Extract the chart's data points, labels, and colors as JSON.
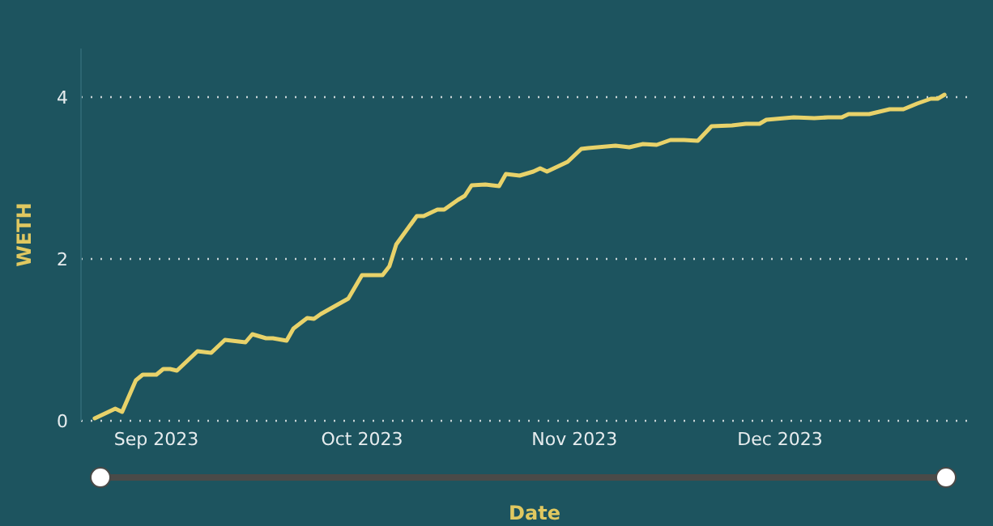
{
  "chart_data": {
    "type": "line",
    "xlabel": "Date",
    "ylabel": "WETH",
    "x": [
      "2023-08-23",
      "2023-08-26",
      "2023-08-27",
      "2023-08-29",
      "2023-08-30",
      "2023-09-01",
      "2023-09-02",
      "2023-09-03",
      "2023-09-04",
      "2023-09-07",
      "2023-09-09",
      "2023-09-11",
      "2023-09-14",
      "2023-09-15",
      "2023-09-17",
      "2023-09-18",
      "2023-09-20",
      "2023-09-21",
      "2023-09-23",
      "2023-09-24",
      "2023-09-25",
      "2023-09-29",
      "2023-10-01",
      "2023-10-04",
      "2023-10-05",
      "2023-10-06",
      "2023-10-09",
      "2023-10-10",
      "2023-10-12",
      "2023-10-13",
      "2023-10-15",
      "2023-10-16",
      "2023-10-17",
      "2023-10-19",
      "2023-10-21",
      "2023-10-22",
      "2023-10-24",
      "2023-10-26",
      "2023-10-27",
      "2023-10-28",
      "2023-10-31",
      "2023-11-02",
      "2023-11-03",
      "2023-11-07",
      "2023-11-09",
      "2023-11-11",
      "2023-11-13",
      "2023-11-15",
      "2023-11-17",
      "2023-11-19",
      "2023-11-21",
      "2023-11-24",
      "2023-11-26",
      "2023-11-28",
      "2023-11-29",
      "2023-12-03",
      "2023-12-06",
      "2023-12-08",
      "2023-12-10",
      "2023-12-11",
      "2023-12-14",
      "2023-12-17",
      "2023-12-19",
      "2023-12-21",
      "2023-12-23",
      "2023-12-24",
      "2023-12-25"
    ],
    "series": [
      {
        "color": "#e8d26a",
        "values": [
          0.03,
          0.15,
          0.11,
          0.5,
          0.57,
          0.57,
          0.64,
          0.64,
          0.62,
          0.86,
          0.84,
          1.0,
          0.97,
          1.07,
          1.02,
          1.02,
          0.99,
          1.14,
          1.27,
          1.26,
          1.32,
          1.51,
          1.8,
          1.8,
          1.91,
          2.18,
          2.53,
          2.53,
          2.61,
          2.61,
          2.73,
          2.78,
          2.91,
          2.92,
          2.9,
          3.05,
          3.03,
          3.08,
          3.12,
          3.08,
          3.2,
          3.36,
          3.37,
          3.4,
          3.38,
          3.42,
          3.41,
          3.47,
          3.47,
          3.46,
          3.64,
          3.65,
          3.67,
          3.67,
          3.72,
          3.75,
          3.74,
          3.75,
          3.75,
          3.79,
          3.79,
          3.85,
          3.85,
          3.92,
          3.98,
          3.98,
          4.03
        ]
      }
    ],
    "xlim": [
      "2023-08-21",
      "2023-12-29"
    ],
    "xticks": [
      {
        "value": "2023-09-01",
        "label": "Sep 2023"
      },
      {
        "value": "2023-10-01",
        "label": "Oct 2023"
      },
      {
        "value": "2023-11-01",
        "label": "Nov 2023"
      },
      {
        "value": "2023-12-01",
        "label": "Dec 2023"
      }
    ],
    "ylim": [
      0,
      4.6
    ],
    "yticks": [
      0,
      2,
      4
    ],
    "grid": "y",
    "marker": "none",
    "line_style": "solid"
  }
}
